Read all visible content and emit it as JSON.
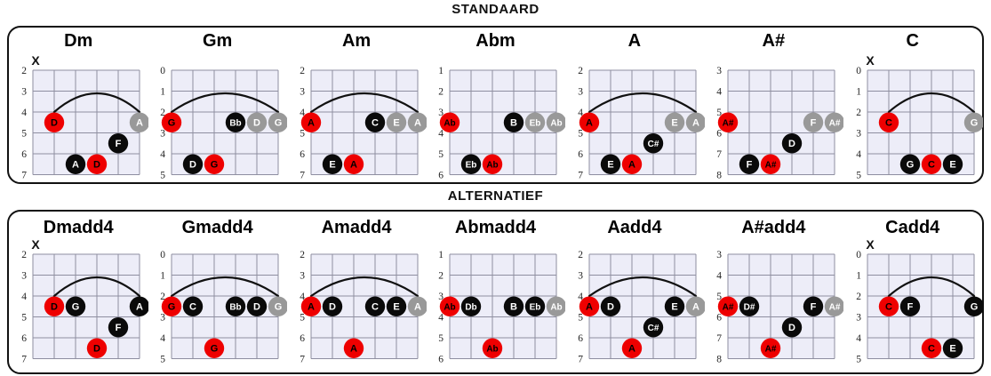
{
  "page": {
    "muted_mark": "X"
  },
  "colors": {
    "red": "#ee0000",
    "black": "#0a0a0a",
    "gray": "#999999",
    "label_on_red": "#000000",
    "label_on_dark": "#ffffff",
    "grid_fill": "#ededf8",
    "grid_line": "#8e8ea0",
    "arc": "#111111",
    "fret_number": "#222222"
  },
  "sections": [
    {
      "title": "STANDAARD",
      "chords": [
        {
          "name": "Dm",
          "frets": [
            2,
            3,
            4,
            5,
            6,
            7
          ],
          "muted": true,
          "arc": {
            "from": 2,
            "to": 6
          },
          "dots": [
            {
              "s": 2,
              "r": 2,
              "c": "red",
              "t": "D"
            },
            {
              "s": 6,
              "r": 2,
              "c": "gray",
              "t": "A"
            },
            {
              "s": 5,
              "r": 3,
              "c": "black",
              "t": "F"
            },
            {
              "s": 3,
              "r": 4,
              "c": "black",
              "t": "A"
            },
            {
              "s": 4,
              "r": 4,
              "c": "red",
              "t": "D"
            }
          ]
        },
        {
          "name": "Gm",
          "frets": [
            0,
            1,
            2,
            3,
            4,
            5
          ],
          "muted": false,
          "arc": {
            "from": 1,
            "to": 6
          },
          "dots": [
            {
              "s": 1,
              "r": 2,
              "c": "red",
              "t": "G"
            },
            {
              "s": 4,
              "r": 2,
              "c": "black",
              "t": "Bb"
            },
            {
              "s": 5,
              "r": 2,
              "c": "gray",
              "t": "D"
            },
            {
              "s": 6,
              "r": 2,
              "c": "gray",
              "t": "G"
            },
            {
              "s": 2,
              "r": 4,
              "c": "black",
              "t": "D"
            },
            {
              "s": 3,
              "r": 4,
              "c": "red",
              "t": "G"
            }
          ]
        },
        {
          "name": "Am",
          "frets": [
            2,
            3,
            4,
            5,
            6,
            7
          ],
          "muted": false,
          "arc": {
            "from": 1,
            "to": 6
          },
          "dots": [
            {
              "s": 1,
              "r": 2,
              "c": "red",
              "t": "A"
            },
            {
              "s": 4,
              "r": 2,
              "c": "black",
              "t": "C"
            },
            {
              "s": 5,
              "r": 2,
              "c": "gray",
              "t": "E"
            },
            {
              "s": 6,
              "r": 2,
              "c": "gray",
              "t": "A"
            },
            {
              "s": 2,
              "r": 4,
              "c": "black",
              "t": "E"
            },
            {
              "s": 3,
              "r": 4,
              "c": "red",
              "t": "A"
            }
          ]
        },
        {
          "name": "Abm",
          "frets": [
            1,
            2,
            3,
            4,
            5,
            6
          ],
          "muted": false,
          "arc": null,
          "dots": [
            {
              "s": 1,
              "r": 2,
              "c": "red",
              "t": "Ab"
            },
            {
              "s": 4,
              "r": 2,
              "c": "black",
              "t": "B"
            },
            {
              "s": 5,
              "r": 2,
              "c": "gray",
              "t": "Eb"
            },
            {
              "s": 6,
              "r": 2,
              "c": "gray",
              "t": "Ab"
            },
            {
              "s": 2,
              "r": 4,
              "c": "black",
              "t": "Eb"
            },
            {
              "s": 3,
              "r": 4,
              "c": "red",
              "t": "Ab"
            }
          ]
        },
        {
          "name": "A",
          "frets": [
            2,
            3,
            4,
            5,
            6,
            7
          ],
          "muted": false,
          "arc": {
            "from": 1,
            "to": 6
          },
          "dots": [
            {
              "s": 1,
              "r": 2,
              "c": "red",
              "t": "A"
            },
            {
              "s": 5,
              "r": 2,
              "c": "gray",
              "t": "E"
            },
            {
              "s": 6,
              "r": 2,
              "c": "gray",
              "t": "A"
            },
            {
              "s": 4,
              "r": 3,
              "c": "black",
              "t": "C#"
            },
            {
              "s": 2,
              "r": 4,
              "c": "black",
              "t": "E"
            },
            {
              "s": 3,
              "r": 4,
              "c": "red",
              "t": "A"
            }
          ]
        },
        {
          "name": "A#",
          "frets": [
            3,
            4,
            5,
            6,
            7,
            8
          ],
          "muted": false,
          "arc": null,
          "dots": [
            {
              "s": 1,
              "r": 2,
              "c": "red",
              "t": "A#"
            },
            {
              "s": 5,
              "r": 2,
              "c": "gray",
              "t": "F"
            },
            {
              "s": 6,
              "r": 2,
              "c": "gray",
              "t": "A#"
            },
            {
              "s": 4,
              "r": 3,
              "c": "black",
              "t": "D"
            },
            {
              "s": 2,
              "r": 4,
              "c": "black",
              "t": "F"
            },
            {
              "s": 3,
              "r": 4,
              "c": "red",
              "t": "A#"
            }
          ]
        },
        {
          "name": "C",
          "frets": [
            0,
            1,
            2,
            3,
            4,
            5
          ],
          "muted": true,
          "arc": {
            "from": 2,
            "to": 6
          },
          "dots": [
            {
              "s": 2,
              "r": 2,
              "c": "red",
              "t": "C"
            },
            {
              "s": 6,
              "r": 2,
              "c": "gray",
              "t": "G"
            },
            {
              "s": 3,
              "r": 4,
              "c": "black",
              "t": "G"
            },
            {
              "s": 4,
              "r": 4,
              "c": "red",
              "t": "C"
            },
            {
              "s": 5,
              "r": 4,
              "c": "black",
              "t": "E"
            }
          ]
        }
      ]
    },
    {
      "title": "ALTERNATIEF",
      "chords": [
        {
          "name": "Dmadd4",
          "frets": [
            2,
            3,
            4,
            5,
            6,
            7
          ],
          "muted": true,
          "arc": {
            "from": 2,
            "to": 6
          },
          "dots": [
            {
              "s": 2,
              "r": 2,
              "c": "red",
              "t": "D"
            },
            {
              "s": 3,
              "r": 2,
              "c": "black",
              "t": "G"
            },
            {
              "s": 6,
              "r": 2,
              "c": "black",
              "t": "A"
            },
            {
              "s": 5,
              "r": 3,
              "c": "black",
              "t": "F"
            },
            {
              "s": 4,
              "r": 4,
              "c": "red",
              "t": "D"
            }
          ]
        },
        {
          "name": "Gmadd4",
          "frets": [
            0,
            1,
            2,
            3,
            4,
            5
          ],
          "muted": false,
          "arc": {
            "from": 1,
            "to": 6
          },
          "dots": [
            {
              "s": 1,
              "r": 2,
              "c": "red",
              "t": "G"
            },
            {
              "s": 2,
              "r": 2,
              "c": "black",
              "t": "C"
            },
            {
              "s": 4,
              "r": 2,
              "c": "black",
              "t": "Bb"
            },
            {
              "s": 5,
              "r": 2,
              "c": "black",
              "t": "D"
            },
            {
              "s": 6,
              "r": 2,
              "c": "gray",
              "t": "G"
            },
            {
              "s": 3,
              "r": 4,
              "c": "red",
              "t": "G"
            }
          ]
        },
        {
          "name": "Amadd4",
          "frets": [
            2,
            3,
            4,
            5,
            6,
            7
          ],
          "muted": false,
          "arc": {
            "from": 1,
            "to": 6
          },
          "dots": [
            {
              "s": 1,
              "r": 2,
              "c": "red",
              "t": "A"
            },
            {
              "s": 2,
              "r": 2,
              "c": "black",
              "t": "D"
            },
            {
              "s": 4,
              "r": 2,
              "c": "black",
              "t": "C"
            },
            {
              "s": 5,
              "r": 2,
              "c": "black",
              "t": "E"
            },
            {
              "s": 6,
              "r": 2,
              "c": "gray",
              "t": "A"
            },
            {
              "s": 3,
              "r": 4,
              "c": "red",
              "t": "A"
            }
          ]
        },
        {
          "name": "Abmadd4",
          "frets": [
            1,
            2,
            3,
            4,
            5,
            6
          ],
          "muted": false,
          "arc": null,
          "dots": [
            {
              "s": 1,
              "r": 2,
              "c": "red",
              "t": "Ab"
            },
            {
              "s": 2,
              "r": 2,
              "c": "black",
              "t": "Db"
            },
            {
              "s": 4,
              "r": 2,
              "c": "black",
              "t": "B"
            },
            {
              "s": 5,
              "r": 2,
              "c": "black",
              "t": "Eb"
            },
            {
              "s": 6,
              "r": 2,
              "c": "gray",
              "t": "Ab"
            },
            {
              "s": 3,
              "r": 4,
              "c": "red",
              "t": "Ab"
            }
          ]
        },
        {
          "name": "Aadd4",
          "frets": [
            2,
            3,
            4,
            5,
            6,
            7
          ],
          "muted": false,
          "arc": {
            "from": 1,
            "to": 6
          },
          "dots": [
            {
              "s": 1,
              "r": 2,
              "c": "red",
              "t": "A"
            },
            {
              "s": 2,
              "r": 2,
              "c": "black",
              "t": "D"
            },
            {
              "s": 5,
              "r": 2,
              "c": "black",
              "t": "E"
            },
            {
              "s": 6,
              "r": 2,
              "c": "gray",
              "t": "A"
            },
            {
              "s": 4,
              "r": 3,
              "c": "black",
              "t": "C#"
            },
            {
              "s": 3,
              "r": 4,
              "c": "red",
              "t": "A"
            }
          ]
        },
        {
          "name": "A#add4",
          "frets": [
            3,
            4,
            5,
            6,
            7,
            8
          ],
          "muted": false,
          "arc": null,
          "dots": [
            {
              "s": 1,
              "r": 2,
              "c": "red",
              "t": "A#"
            },
            {
              "s": 2,
              "r": 2,
              "c": "black",
              "t": "D#"
            },
            {
              "s": 5,
              "r": 2,
              "c": "black",
              "t": "F"
            },
            {
              "s": 6,
              "r": 2,
              "c": "gray",
              "t": "A#"
            },
            {
              "s": 4,
              "r": 3,
              "c": "black",
              "t": "D"
            },
            {
              "s": 3,
              "r": 4,
              "c": "red",
              "t": "A#"
            }
          ]
        },
        {
          "name": "Cadd4",
          "frets": [
            0,
            1,
            2,
            3,
            4,
            5
          ],
          "muted": true,
          "arc": {
            "from": 2,
            "to": 6
          },
          "dots": [
            {
              "s": 2,
              "r": 2,
              "c": "red",
              "t": "C"
            },
            {
              "s": 3,
              "r": 2,
              "c": "black",
              "t": "F"
            },
            {
              "s": 6,
              "r": 2,
              "c": "black",
              "t": "G"
            },
            {
              "s": 4,
              "r": 4,
              "c": "red",
              "t": "C"
            },
            {
              "s": 5,
              "r": 4,
              "c": "black",
              "t": "E"
            }
          ]
        }
      ]
    }
  ]
}
